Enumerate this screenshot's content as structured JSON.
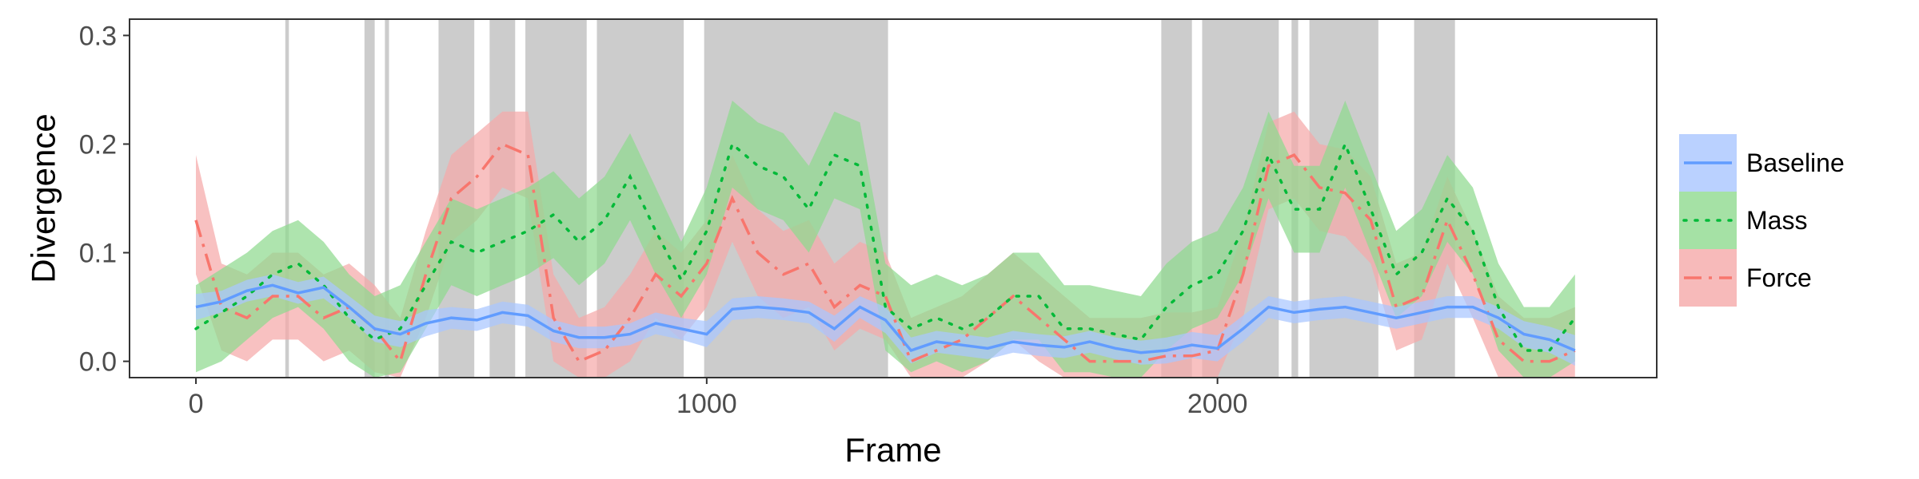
{
  "chart_data": {
    "type": "line",
    "title": "",
    "xlabel": "Frame",
    "ylabel": "Divergence",
    "xlim": [
      -130,
      2860
    ],
    "ylim": [
      -0.015,
      0.315
    ],
    "x_ticks": [
      0,
      1000,
      2000
    ],
    "y_ticks": [
      0.0,
      0.1,
      0.2,
      0.3
    ],
    "x_tick_labels": [
      "0",
      "1000",
      "2000"
    ],
    "y_tick_labels": [
      "0.0",
      "0.1",
      "0.2",
      "0.3"
    ],
    "grid": false,
    "legend_position": "right",
    "background_color": "#ffffff",
    "shaded_color": "#cccccc",
    "shaded_regions": [
      [
        175,
        182
      ],
      [
        330,
        350
      ],
      [
        370,
        378
      ],
      [
        475,
        545
      ],
      [
        575,
        625
      ],
      [
        645,
        765
      ],
      [
        785,
        955
      ],
      [
        995,
        1355
      ],
      [
        1890,
        1950
      ],
      [
        1970,
        2120
      ],
      [
        2145,
        2158
      ],
      [
        2180,
        2315
      ],
      [
        2385,
        2465
      ]
    ],
    "series": [
      {
        "name": "Baseline",
        "color": "#619cff",
        "band_color": "#a9c6ff",
        "dash": "solid",
        "x": [
          0,
          50,
          100,
          150,
          200,
          250,
          300,
          350,
          400,
          450,
          500,
          550,
          600,
          650,
          700,
          750,
          800,
          850,
          900,
          950,
          1000,
          1050,
          1100,
          1150,
          1200,
          1250,
          1300,
          1350,
          1400,
          1450,
          1500,
          1550,
          1600,
          1650,
          1700,
          1750,
          1800,
          1850,
          1900,
          1950,
          2000,
          2050,
          2100,
          2150,
          2200,
          2250,
          2300,
          2350,
          2400,
          2450,
          2500,
          2550,
          2600,
          2650,
          2700
        ],
        "y": [
          0.05,
          0.055,
          0.065,
          0.07,
          0.063,
          0.068,
          0.05,
          0.03,
          0.025,
          0.035,
          0.04,
          0.038,
          0.045,
          0.042,
          0.028,
          0.022,
          0.022,
          0.025,
          0.035,
          0.03,
          0.025,
          0.048,
          0.05,
          0.048,
          0.045,
          0.03,
          0.05,
          0.038,
          0.01,
          0.018,
          0.015,
          0.012,
          0.018,
          0.015,
          0.013,
          0.018,
          0.012,
          0.008,
          0.01,
          0.015,
          0.012,
          0.03,
          0.05,
          0.045,
          0.048,
          0.05,
          0.045,
          0.04,
          0.045,
          0.05,
          0.05,
          0.04,
          0.025,
          0.02,
          0.01
        ],
        "lower": [
          0.038,
          0.045,
          0.055,
          0.06,
          0.053,
          0.058,
          0.04,
          0.018,
          0.013,
          0.023,
          0.03,
          0.028,
          0.035,
          0.032,
          0.018,
          0.012,
          0.012,
          0.015,
          0.025,
          0.02,
          0.013,
          0.038,
          0.04,
          0.038,
          0.035,
          0.018,
          0.04,
          0.026,
          -0.002,
          0.008,
          0.005,
          0.002,
          0.008,
          0.005,
          0.003,
          0.008,
          0.002,
          -0.003,
          -0.002,
          0.003,
          0.0,
          0.018,
          0.04,
          0.035,
          0.038,
          0.04,
          0.035,
          0.03,
          0.035,
          0.04,
          0.04,
          0.03,
          0.013,
          0.008,
          -0.004
        ],
        "upper": [
          0.062,
          0.065,
          0.075,
          0.08,
          0.073,
          0.078,
          0.06,
          0.042,
          0.037,
          0.047,
          0.05,
          0.048,
          0.055,
          0.052,
          0.038,
          0.032,
          0.032,
          0.035,
          0.045,
          0.04,
          0.037,
          0.058,
          0.06,
          0.058,
          0.055,
          0.042,
          0.06,
          0.05,
          0.022,
          0.028,
          0.025,
          0.022,
          0.028,
          0.025,
          0.023,
          0.028,
          0.022,
          0.019,
          0.022,
          0.027,
          0.024,
          0.042,
          0.06,
          0.055,
          0.058,
          0.06,
          0.055,
          0.05,
          0.055,
          0.06,
          0.06,
          0.05,
          0.037,
          0.032,
          0.024
        ]
      },
      {
        "name": "Mass",
        "color": "#00ba38",
        "band_color": "#8fd98f",
        "dash": "dotted",
        "x": [
          0,
          50,
          100,
          150,
          200,
          250,
          300,
          350,
          400,
          450,
          500,
          550,
          600,
          650,
          700,
          750,
          800,
          850,
          900,
          950,
          1000,
          1050,
          1100,
          1150,
          1200,
          1250,
          1300,
          1350,
          1400,
          1450,
          1500,
          1550,
          1600,
          1650,
          1700,
          1750,
          1800,
          1850,
          1900,
          1950,
          2000,
          2050,
          2100,
          2150,
          2200,
          2250,
          2300,
          2350,
          2400,
          2450,
          2500,
          2550,
          2600,
          2650,
          2700
        ],
        "y": [
          0.03,
          0.045,
          0.06,
          0.08,
          0.09,
          0.07,
          0.04,
          0.02,
          0.03,
          0.07,
          0.11,
          0.1,
          0.11,
          0.12,
          0.135,
          0.11,
          0.13,
          0.17,
          0.12,
          0.075,
          0.12,
          0.2,
          0.18,
          0.17,
          0.14,
          0.19,
          0.18,
          0.05,
          0.03,
          0.04,
          0.03,
          0.04,
          0.06,
          0.06,
          0.03,
          0.03,
          0.025,
          0.02,
          0.05,
          0.07,
          0.08,
          0.12,
          0.19,
          0.14,
          0.14,
          0.2,
          0.14,
          0.08,
          0.1,
          0.15,
          0.12,
          0.05,
          0.01,
          0.01,
          0.04
        ],
        "lower": [
          -0.01,
          0.0,
          0.02,
          0.04,
          0.05,
          0.03,
          0.0,
          -0.02,
          -0.01,
          0.03,
          0.07,
          0.06,
          0.07,
          0.08,
          0.095,
          0.07,
          0.09,
          0.13,
          0.08,
          0.04,
          0.08,
          0.16,
          0.14,
          0.13,
          0.1,
          0.15,
          0.14,
          0.01,
          -0.01,
          0.0,
          -0.01,
          0.0,
          0.02,
          0.02,
          -0.01,
          -0.01,
          -0.015,
          -0.02,
          0.01,
          0.03,
          0.04,
          0.08,
          0.15,
          0.1,
          0.1,
          0.16,
          0.1,
          0.04,
          0.06,
          0.11,
          0.08,
          0.01,
          -0.03,
          -0.03,
          0.0
        ],
        "upper": [
          0.07,
          0.085,
          0.1,
          0.12,
          0.13,
          0.11,
          0.08,
          0.06,
          0.07,
          0.11,
          0.15,
          0.14,
          0.15,
          0.16,
          0.175,
          0.15,
          0.17,
          0.21,
          0.16,
          0.11,
          0.16,
          0.24,
          0.22,
          0.21,
          0.18,
          0.23,
          0.22,
          0.09,
          0.07,
          0.08,
          0.07,
          0.08,
          0.1,
          0.1,
          0.07,
          0.07,
          0.065,
          0.06,
          0.09,
          0.11,
          0.12,
          0.16,
          0.23,
          0.18,
          0.18,
          0.24,
          0.18,
          0.12,
          0.14,
          0.19,
          0.16,
          0.09,
          0.05,
          0.05,
          0.08
        ]
      },
      {
        "name": "Force",
        "color": "#f8766d",
        "band_color": "#f5a9a9",
        "dash": "dashdot",
        "x": [
          0,
          50,
          100,
          150,
          200,
          250,
          300,
          350,
          400,
          450,
          500,
          550,
          600,
          650,
          700,
          750,
          800,
          850,
          900,
          950,
          1000,
          1050,
          1100,
          1150,
          1200,
          1250,
          1300,
          1350,
          1400,
          1450,
          1500,
          1550,
          1600,
          1650,
          1700,
          1750,
          1800,
          1850,
          1900,
          1950,
          2000,
          2050,
          2100,
          2150,
          2200,
          2250,
          2300,
          2350,
          2400,
          2450,
          2500,
          2550,
          2600,
          2650,
          2700
        ],
        "y": [
          0.13,
          0.05,
          0.04,
          0.06,
          0.06,
          0.04,
          0.05,
          0.03,
          0.0,
          0.08,
          0.15,
          0.17,
          0.2,
          0.19,
          0.04,
          0.0,
          0.01,
          0.04,
          0.08,
          0.06,
          0.09,
          0.15,
          0.1,
          0.08,
          0.09,
          0.05,
          0.07,
          0.06,
          0.0,
          0.01,
          0.02,
          0.04,
          0.06,
          0.04,
          0.02,
          0.0,
          0.0,
          0.0,
          0.005,
          0.005,
          0.01,
          0.08,
          0.18,
          0.19,
          0.16,
          0.155,
          0.13,
          0.05,
          0.06,
          0.13,
          0.08,
          0.02,
          0.0,
          0.0,
          0.01
        ],
        "lower": [
          0.08,
          0.01,
          0.0,
          0.02,
          0.02,
          0.0,
          0.01,
          -0.01,
          -0.04,
          0.04,
          0.11,
          0.13,
          0.16,
          0.15,
          0.0,
          -0.04,
          -0.03,
          0.0,
          0.04,
          0.02,
          0.05,
          0.11,
          0.06,
          0.04,
          0.05,
          0.01,
          0.03,
          0.02,
          -0.04,
          -0.03,
          -0.02,
          0.0,
          0.02,
          0.0,
          -0.02,
          -0.04,
          -0.04,
          -0.04,
          -0.035,
          -0.035,
          -0.03,
          0.04,
          0.14,
          0.15,
          0.12,
          0.115,
          0.09,
          0.01,
          0.02,
          0.09,
          0.04,
          -0.02,
          -0.04,
          -0.04,
          -0.03
        ],
        "upper": [
          0.19,
          0.09,
          0.08,
          0.1,
          0.1,
          0.08,
          0.09,
          0.07,
          0.04,
          0.12,
          0.19,
          0.21,
          0.23,
          0.23,
          0.08,
          0.04,
          0.05,
          0.08,
          0.12,
          0.1,
          0.13,
          0.19,
          0.14,
          0.12,
          0.13,
          0.09,
          0.11,
          0.1,
          0.04,
          0.05,
          0.06,
          0.08,
          0.1,
          0.08,
          0.06,
          0.04,
          0.04,
          0.04,
          0.045,
          0.045,
          0.05,
          0.12,
          0.22,
          0.23,
          0.2,
          0.195,
          0.17,
          0.09,
          0.1,
          0.17,
          0.12,
          0.06,
          0.04,
          0.04,
          0.05
        ]
      }
    ]
  }
}
